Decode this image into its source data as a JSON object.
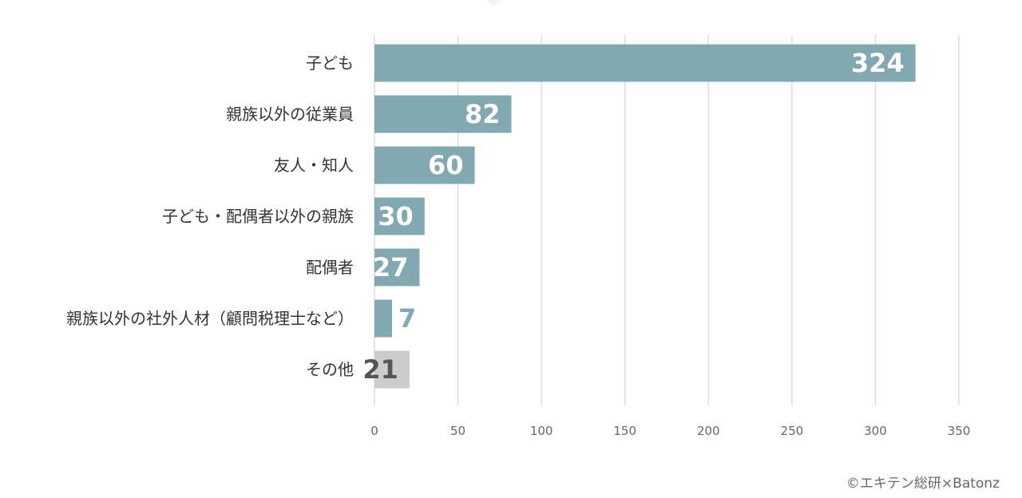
{
  "chart_data": {
    "type": "bar",
    "orientation": "horizontal",
    "categories": [
      "子ども",
      "親族以外の従業員",
      "友人・知人",
      "子ども・配偶者以外の親族",
      "配偶者",
      "親族以外の社外人材（顧問税理士など）",
      "その他"
    ],
    "values": [
      324,
      82,
      60,
      30,
      27,
      7,
      21
    ],
    "bar_colors": [
      "#82a8b2",
      "#82a8b2",
      "#82a8b2",
      "#82a8b2",
      "#82a8b2",
      "#82a8b2",
      "#cccccc"
    ],
    "label_colors": [
      "#ffffff",
      "#ffffff",
      "#ffffff",
      "#ffffff",
      "#ffffff",
      "#82a8b2",
      "#555555"
    ],
    "label_inside": [
      true,
      true,
      true,
      true,
      true,
      false,
      true
    ],
    "xlim": [
      0,
      350
    ],
    "xticks": [
      0,
      50,
      100,
      150,
      200,
      250,
      300,
      350
    ],
    "grid": true,
    "title": "",
    "xlabel": "",
    "ylabel": ""
  },
  "source": "©エキテン総研×Batonz"
}
